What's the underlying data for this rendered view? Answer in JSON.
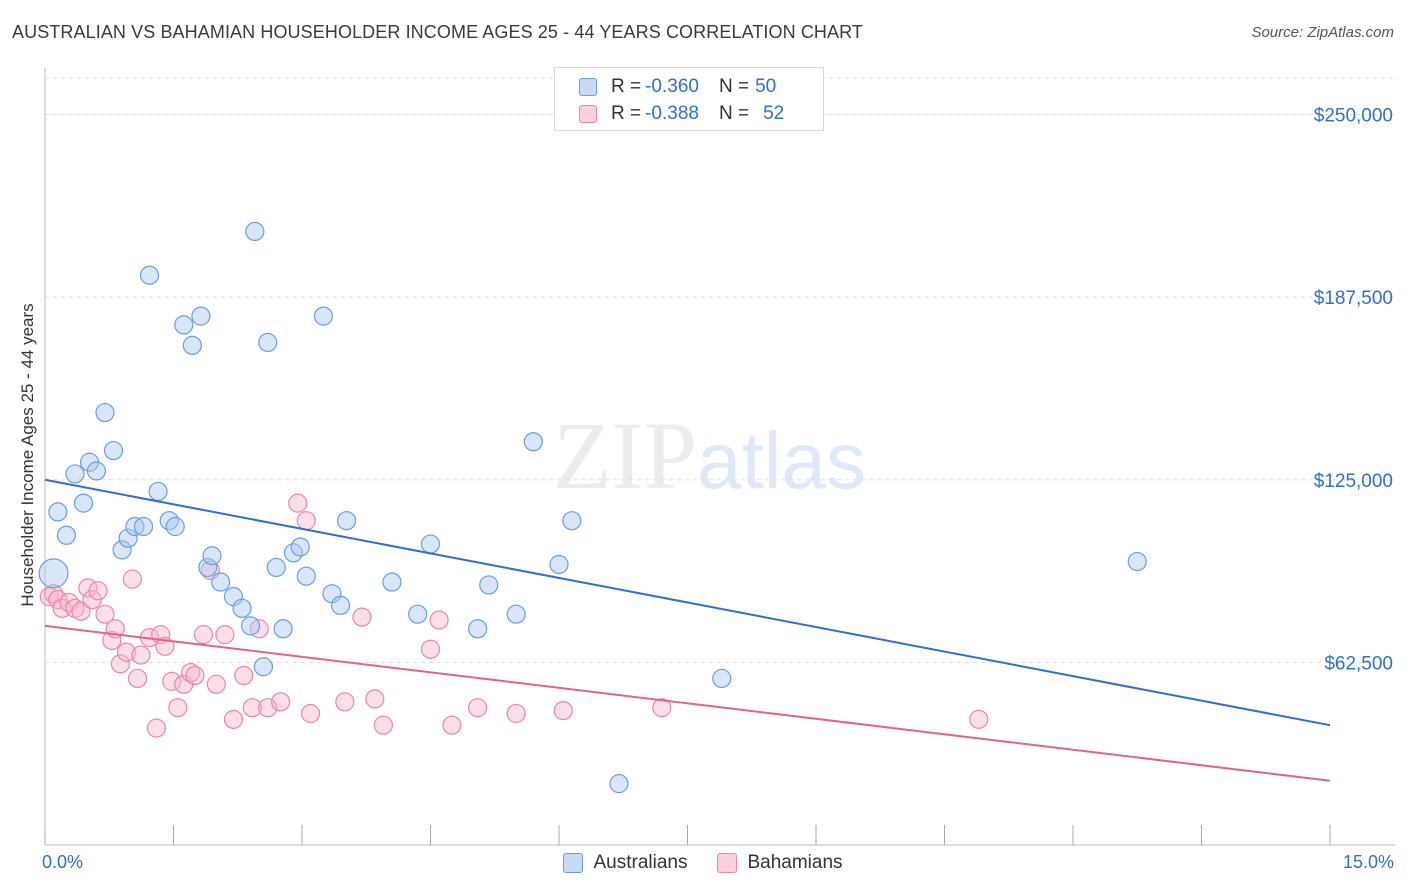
{
  "title": "AUSTRALIAN VS BAHAMIAN HOUSEHOLDER INCOME AGES 25 - 44 YEARS CORRELATION CHART",
  "source": "Source: ZipAtlas.com",
  "watermark": {
    "zip": "ZIP",
    "atlas": "atlas"
  },
  "legend_top": [
    {
      "r_label": "R = ",
      "r_value": "-0.360",
      "n_label": "N = ",
      "n_value": "50"
    },
    {
      "r_label": "R = ",
      "r_value": "-0.388",
      "n_label": "N = ",
      "n_value": "52"
    }
  ],
  "colors": {
    "australians_fill": "#a8c8f0",
    "australians_stroke": "#6a9ee0",
    "australians_line": "#2f6fd0",
    "bahamians_fill": "#f7b8cb",
    "bahamians_stroke": "#ee86a5",
    "bahamians_line": "#e8608a",
    "grid": "#dddddd",
    "axis_text": "#2f6fd0"
  },
  "chart_data": {
    "type": "scatter",
    "title": "AUSTRALIAN VS BAHAMIAN HOUSEHOLDER INCOME AGES 25 - 44 YEARS CORRELATION CHART",
    "xlabel": "",
    "ylabel": "Householder Income Ages 25 - 44 years",
    "xlim": [
      0,
      15
    ],
    "ylim": [
      0,
      262500
    ],
    "x_tick_labels": [
      "0.0%",
      "15.0%"
    ],
    "y_ticks": [
      62500,
      125000,
      187500,
      250000
    ],
    "y_tick_labels": [
      "$62,500",
      "$125,000",
      "$187,500",
      "$250,000"
    ],
    "grid": true,
    "legend_placement": "top-center and bottom",
    "series": [
      {
        "name": "Australians",
        "points": [
          [
            0.1,
            93000,
            1.6
          ],
          [
            0.15,
            114000,
            1.0
          ],
          [
            0.25,
            106000,
            1.0
          ],
          [
            0.35,
            127000,
            1.0
          ],
          [
            0.45,
            117000,
            1.0
          ],
          [
            0.52,
            131000,
            1.0
          ],
          [
            0.6,
            128000,
            1.0
          ],
          [
            0.7,
            148000,
            1.0
          ],
          [
            0.8,
            135000,
            1.0
          ],
          [
            0.9,
            101000,
            1.0
          ],
          [
            0.97,
            105000,
            1.0
          ],
          [
            1.05,
            109000,
            1.0
          ],
          [
            1.15,
            109000,
            1.0
          ],
          [
            1.22,
            195000,
            1.0
          ],
          [
            1.32,
            121000,
            1.0
          ],
          [
            1.45,
            111000,
            1.0
          ],
          [
            1.52,
            109000,
            1.0
          ],
          [
            1.62,
            178000,
            1.0
          ],
          [
            1.72,
            171000,
            1.0
          ],
          [
            1.82,
            181000,
            1.0
          ],
          [
            1.9,
            95000,
            1.0
          ],
          [
            1.95,
            99000,
            1.0
          ],
          [
            2.05,
            90000,
            1.0
          ],
          [
            2.2,
            85000,
            1.0
          ],
          [
            2.3,
            81000,
            1.0
          ],
          [
            2.4,
            75000,
            1.0
          ],
          [
            2.45,
            210000,
            1.0
          ],
          [
            2.55,
            61000,
            1.0
          ],
          [
            2.6,
            172000,
            1.0
          ],
          [
            2.7,
            95000,
            1.0
          ],
          [
            2.78,
            74000,
            1.0
          ],
          [
            2.9,
            100000,
            1.0
          ],
          [
            2.98,
            102000,
            1.0
          ],
          [
            3.05,
            92000,
            1.0
          ],
          [
            3.25,
            181000,
            1.0
          ],
          [
            3.35,
            86000,
            1.0
          ],
          [
            3.45,
            82000,
            1.0
          ],
          [
            3.52,
            111000,
            1.0
          ],
          [
            4.05,
            90000,
            1.0
          ],
          [
            4.35,
            79000,
            1.0
          ],
          [
            4.5,
            103000,
            1.0
          ],
          [
            5.05,
            74000,
            1.0
          ],
          [
            5.18,
            89000,
            1.0
          ],
          [
            5.5,
            79000,
            1.0
          ],
          [
            5.7,
            138000,
            1.0
          ],
          [
            6.0,
            96000,
            1.0
          ],
          [
            6.15,
            111000,
            1.0
          ],
          [
            6.7,
            21000,
            1.0
          ],
          [
            7.9,
            57000,
            1.0
          ],
          [
            12.75,
            97000,
            1.0
          ]
        ]
      },
      {
        "name": "Bahamians",
        "points": [
          [
            0.05,
            85000,
            1.0
          ],
          [
            0.1,
            86000,
            1.0
          ],
          [
            0.15,
            84000,
            1.0
          ],
          [
            0.2,
            81000,
            1.0
          ],
          [
            0.28,
            83000,
            1.0
          ],
          [
            0.35,
            81000,
            1.0
          ],
          [
            0.42,
            80000,
            1.0
          ],
          [
            0.5,
            88000,
            1.0
          ],
          [
            0.55,
            84000,
            1.0
          ],
          [
            0.62,
            87000,
            1.0
          ],
          [
            0.7,
            79000,
            1.0
          ],
          [
            0.78,
            70000,
            1.0
          ],
          [
            0.82,
            74000,
            1.0
          ],
          [
            0.88,
            62000,
            1.0
          ],
          [
            0.95,
            66000,
            1.0
          ],
          [
            1.02,
            91000,
            1.0
          ],
          [
            1.08,
            57000,
            1.0
          ],
          [
            1.12,
            65000,
            1.0
          ],
          [
            1.22,
            71000,
            1.0
          ],
          [
            1.3,
            40000,
            1.0
          ],
          [
            1.35,
            72000,
            1.0
          ],
          [
            1.4,
            68000,
            1.0
          ],
          [
            1.48,
            56000,
            1.0
          ],
          [
            1.55,
            47000,
            1.0
          ],
          [
            1.62,
            55000,
            1.0
          ],
          [
            1.7,
            59000,
            1.0
          ],
          [
            1.75,
            58000,
            1.0
          ],
          [
            1.85,
            72000,
            1.0
          ],
          [
            1.93,
            94000,
            1.0
          ],
          [
            2.0,
            55000,
            1.0
          ],
          [
            2.1,
            72000,
            1.0
          ],
          [
            2.2,
            43000,
            1.0
          ],
          [
            2.32,
            58000,
            1.0
          ],
          [
            2.42,
            47000,
            1.0
          ],
          [
            2.5,
            74000,
            1.0
          ],
          [
            2.6,
            47000,
            1.0
          ],
          [
            2.75,
            49000,
            1.0
          ],
          [
            2.95,
            117000,
            1.0
          ],
          [
            3.05,
            111000,
            1.0
          ],
          [
            3.1,
            45000,
            1.0
          ],
          [
            3.5,
            49000,
            1.0
          ],
          [
            3.7,
            78000,
            1.0
          ],
          [
            3.85,
            50000,
            1.0
          ],
          [
            3.95,
            41000,
            1.0
          ],
          [
            4.5,
            67000,
            1.0
          ],
          [
            4.6,
            77000,
            1.0
          ],
          [
            4.75,
            41000,
            1.0
          ],
          [
            5.05,
            47000,
            1.0
          ],
          [
            5.5,
            45000,
            1.0
          ],
          [
            6.05,
            46000,
            1.0
          ],
          [
            7.2,
            47000,
            1.0
          ],
          [
            10.9,
            43000,
            1.0
          ]
        ]
      }
    ],
    "trend_lines": [
      {
        "name": "Australians",
        "x": [
          0,
          15
        ],
        "y": [
          125000,
          41000
        ]
      },
      {
        "name": "Bahamians",
        "x": [
          0,
          15
        ],
        "y": [
          75000,
          22000
        ]
      }
    ]
  },
  "legend_bottom": [
    {
      "label": "Australians"
    },
    {
      "label": "Bahamians"
    }
  ]
}
